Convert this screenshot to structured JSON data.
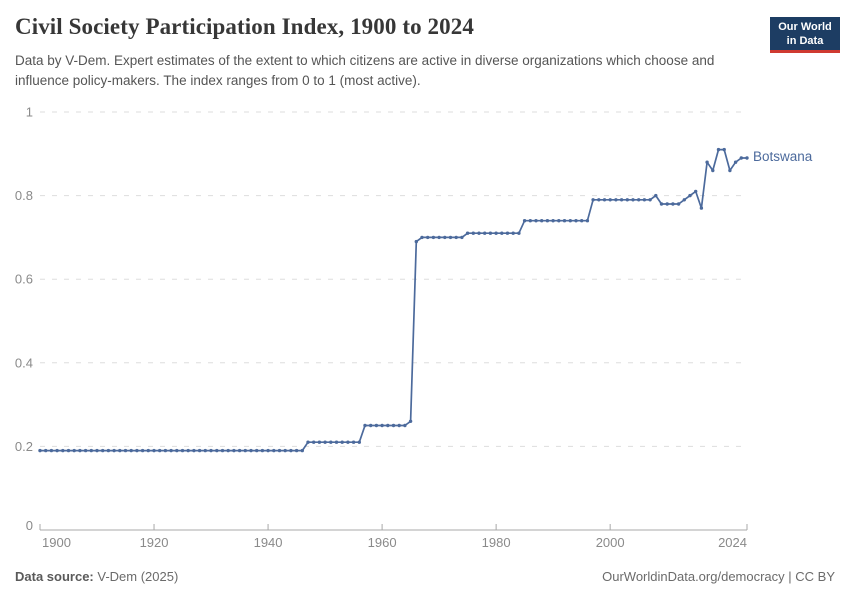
{
  "header": {
    "title": "Civil Society Participation Index, 1900 to 2024",
    "subtitle": "Data by V-Dem. Expert estimates of the extent to which citizens are active in diverse organizations which choose and influence policy-makers. The index ranges from 0 to 1 (most active).",
    "logo": {
      "line1": "Our World",
      "line2": "in Data",
      "bg_color": "#1d3d63",
      "accent_color": "#cf3a31"
    }
  },
  "chart_data": {
    "type": "line",
    "title": "Civil Society Participation Index, 1900 to 2024",
    "xlabel": "",
    "ylabel": "",
    "xlim": [
      1900,
      2024
    ],
    "ylim": [
      0,
      1
    ],
    "xticks": [
      1900,
      1920,
      1940,
      1960,
      1980,
      2000,
      2024
    ],
    "yticks": [
      0,
      0.2,
      0.4,
      0.6,
      0.8,
      1
    ],
    "grid": "horizontal-dashed",
    "legend_position": "end-of-line-label",
    "x_start": 1900,
    "x_step": 1,
    "series": [
      {
        "name": "Botswana",
        "color": "#4c6a9c",
        "values": [
          0.19,
          0.19,
          0.19,
          0.19,
          0.19,
          0.19,
          0.19,
          0.19,
          0.19,
          0.19,
          0.19,
          0.19,
          0.19,
          0.19,
          0.19,
          0.19,
          0.19,
          0.19,
          0.19,
          0.19,
          0.19,
          0.19,
          0.19,
          0.19,
          0.19,
          0.19,
          0.19,
          0.19,
          0.19,
          0.19,
          0.19,
          0.19,
          0.19,
          0.19,
          0.19,
          0.19,
          0.19,
          0.19,
          0.19,
          0.19,
          0.19,
          0.19,
          0.19,
          0.19,
          0.19,
          0.19,
          0.19,
          0.21,
          0.21,
          0.21,
          0.21,
          0.21,
          0.21,
          0.21,
          0.21,
          0.21,
          0.21,
          0.25,
          0.25,
          0.25,
          0.25,
          0.25,
          0.25,
          0.25,
          0.25,
          0.26,
          0.69,
          0.7,
          0.7,
          0.7,
          0.7,
          0.7,
          0.7,
          0.7,
          0.7,
          0.71,
          0.71,
          0.71,
          0.71,
          0.71,
          0.71,
          0.71,
          0.71,
          0.71,
          0.71,
          0.74,
          0.74,
          0.74,
          0.74,
          0.74,
          0.74,
          0.74,
          0.74,
          0.74,
          0.74,
          0.74,
          0.74,
          0.79,
          0.79,
          0.79,
          0.79,
          0.79,
          0.79,
          0.79,
          0.79,
          0.79,
          0.79,
          0.79,
          0.8,
          0.78,
          0.78,
          0.78,
          0.78,
          0.79,
          0.8,
          0.81,
          0.77,
          0.88,
          0.86,
          0.91,
          0.91,
          0.86,
          0.88,
          0.89,
          0.89
        ]
      }
    ]
  },
  "footer": {
    "source_label": "Data source:",
    "source_value": " V-Dem (2025)",
    "credit": "OurWorldinData.org/democracy | CC BY"
  }
}
